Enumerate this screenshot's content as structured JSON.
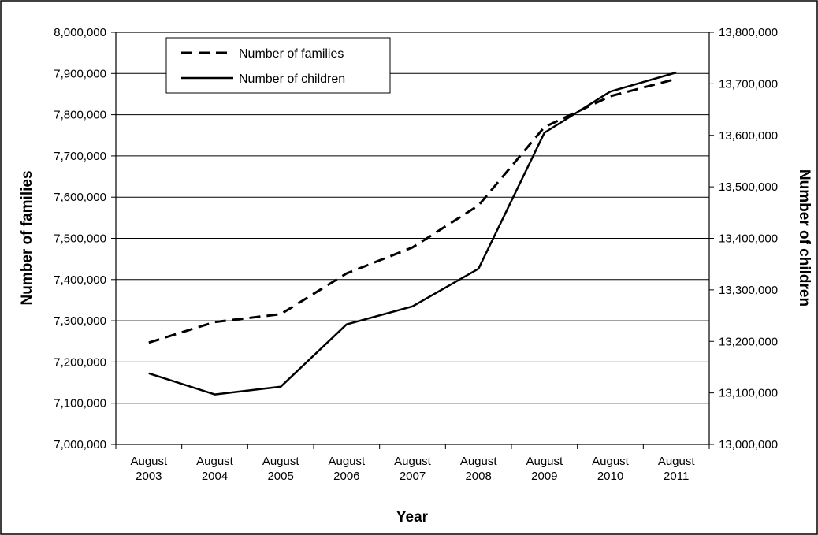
{
  "chart_data": {
    "type": "line",
    "categories": [
      [
        "August",
        "2003"
      ],
      [
        "August",
        "2004"
      ],
      [
        "August",
        "2005"
      ],
      [
        "August",
        "2006"
      ],
      [
        "August",
        "2007"
      ],
      [
        "August",
        "2008"
      ],
      [
        "August",
        "2009"
      ],
      [
        "August",
        "2010"
      ],
      [
        "August",
        "2011"
      ]
    ],
    "xlabel": "Year",
    "ylabel_left": "Number of families",
    "ylabel_right": "Number of children",
    "ylim_left": [
      7000000,
      8000000
    ],
    "ylim_right": [
      13000000,
      13800000
    ],
    "yticks_left": [
      "7,000,000",
      "7,100,000",
      "7,200,000",
      "7,300,000",
      "7,400,000",
      "7,500,000",
      "7,600,000",
      "7,700,000",
      "7,800,000",
      "7,900,000",
      "8,000,000"
    ],
    "yticks_right": [
      "13,000,000",
      "13,100,000",
      "13,200,000",
      "13,300,000",
      "13,400,000",
      "13,500,000",
      "13,600,000",
      "13,700,000",
      "13,800,000"
    ],
    "grid": true,
    "legend_position": "top-left",
    "series": [
      {
        "name": "Number of families",
        "axis": "left",
        "style": "dashed",
        "color": "#000000",
        "values": [
          7247000,
          7297000,
          7316000,
          7415000,
          7478000,
          7580000,
          7770000,
          7845000,
          7887000
        ]
      },
      {
        "name": "Number of children",
        "axis": "right",
        "style": "solid",
        "color": "#000000",
        "values": [
          13138000,
          13097000,
          13112000,
          13233000,
          13268000,
          13341000,
          13605000,
          13685000,
          13722000
        ]
      }
    ]
  }
}
